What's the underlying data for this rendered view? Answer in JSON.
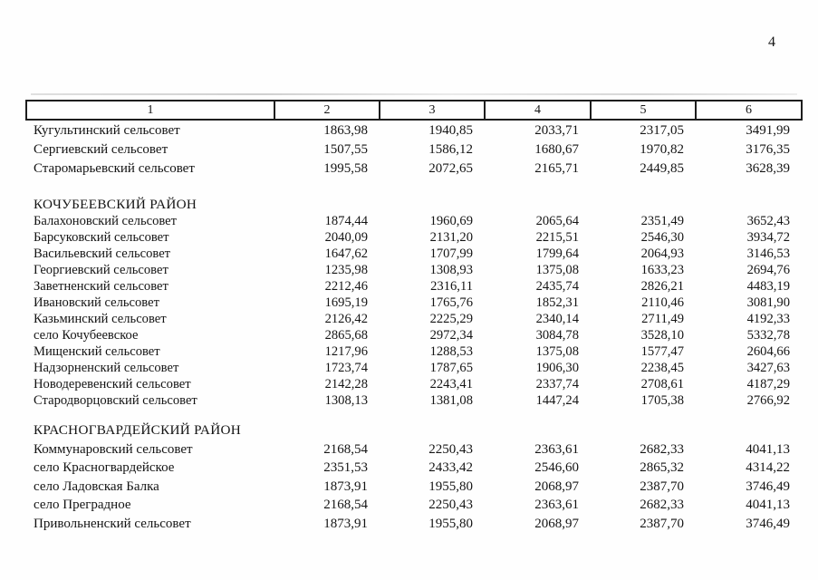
{
  "page": {
    "number": "4"
  },
  "table": {
    "columns": [
      "1",
      "2",
      "3",
      "4",
      "5",
      "6"
    ],
    "sections": [
      {
        "district": null,
        "rows": [
          {
            "name": "Кугультинский сельсовет",
            "values": [
              "1863,98",
              "1940,85",
              "2033,71",
              "2317,05",
              "3491,99"
            ]
          },
          {
            "name": "Сергиевский сельсовет",
            "values": [
              "1507,55",
              "1586,12",
              "1680,67",
              "1970,82",
              "3176,35"
            ]
          },
          {
            "name": "Старомарьевский сельсовет",
            "values": [
              "1995,58",
              "2072,65",
              "2165,71",
              "2449,85",
              "3628,39"
            ]
          }
        ]
      },
      {
        "district": "КОЧУБЕЕВСКИЙ РАЙОН",
        "rows": [
          {
            "name": "Балахоновский сельсовет",
            "values": [
              "1874,44",
              "1960,69",
              "2065,64",
              "2351,49",
              "3652,43"
            ]
          },
          {
            "name": "Барсуковский сельсовет",
            "values": [
              "2040,09",
              "2131,20",
              "2215,51",
              "2546,30",
              "3934,72"
            ]
          },
          {
            "name": "Васильевский сельсовет",
            "values": [
              "1647,62",
              "1707,99",
              "1799,64",
              "2064,93",
              "3146,53"
            ]
          },
          {
            "name": "Георгиевский сельсовет",
            "values": [
              "1235,98",
              "1308,93",
              "1375,08",
              "1633,23",
              "2694,76"
            ]
          },
          {
            "name": "Заветненский сельсовет",
            "values": [
              "2212,46",
              "2316,11",
              "2435,74",
              "2826,21",
              "4483,19"
            ]
          },
          {
            "name": "Ивановский сельсовет",
            "values": [
              "1695,19",
              "1765,76",
              "1852,31",
              "2110,46",
              "3081,90"
            ]
          },
          {
            "name": "Казьминский сельсовет",
            "values": [
              "2126,42",
              "2225,29",
              "2340,14",
              "2711,49",
              "4192,33"
            ]
          },
          {
            "name": "село Кочубеевское",
            "values": [
              "2865,68",
              "2972,34",
              "3084,78",
              "3528,10",
              "5332,78"
            ]
          },
          {
            "name": "Мищенский сельсовет",
            "values": [
              "1217,96",
              "1288,53",
              "1375,08",
              "1577,47",
              "2604,66"
            ]
          },
          {
            "name": "Надзорненский сельсовет",
            "values": [
              "1723,74",
              "1787,65",
              "1906,30",
              "2238,45",
              "3427,63"
            ]
          },
          {
            "name": "Новодеревенский сельсовет",
            "values": [
              "2142,28",
              "2243,41",
              "2337,74",
              "2708,61",
              "4187,29"
            ]
          },
          {
            "name": "Стародворцовский сельсовет",
            "values": [
              "1308,13",
              "1381,08",
              "1447,24",
              "1705,38",
              "2766,92"
            ]
          }
        ]
      },
      {
        "district": "КРАСНОГВАРДЕЙСКИЙ РАЙОН",
        "rows": [
          {
            "name": "Коммунаровский сельсовет",
            "values": [
              "2168,54",
              "2250,43",
              "2363,61",
              "2682,33",
              "4041,13"
            ]
          },
          {
            "name": "село Красногвардейское",
            "values": [
              "2351,53",
              "2433,42",
              "2546,60",
              "2865,32",
              "4314,22"
            ]
          },
          {
            "name": "село Ладовская Балка",
            "values": [
              "1873,91",
              "1955,80",
              "2068,97",
              "2387,70",
              "3746,49"
            ]
          },
          {
            "name": "село Преградное",
            "values": [
              "2168,54",
              "2250,43",
              "2363,61",
              "2682,33",
              "4041,13"
            ]
          },
          {
            "name": "Привольненский сельсовет",
            "values": [
              "1873,91",
              "1955,80",
              "2068,97",
              "2387,70",
              "3746,49"
            ]
          }
        ]
      }
    ]
  }
}
